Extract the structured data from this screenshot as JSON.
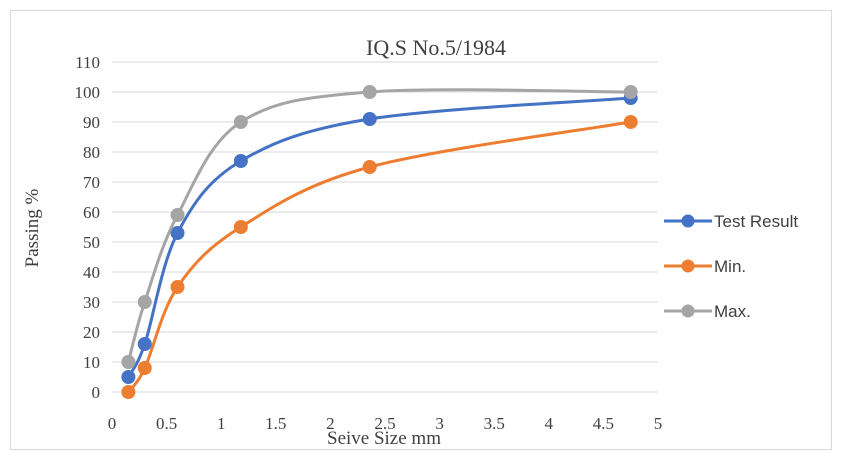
{
  "chart_data": {
    "type": "line",
    "title": "IQ.S No.5/1984",
    "xlabel": "Seive Size mm",
    "ylabel": "Passing %",
    "xlim": [
      0,
      5
    ],
    "ylim": [
      0,
      110
    ],
    "xticks": [
      "0",
      "0.5",
      "1",
      "1.5",
      "2",
      "2.5",
      "3",
      "3.5",
      "4",
      "4.5",
      "5"
    ],
    "yticks": [
      "0",
      "10",
      "20",
      "30",
      "40",
      "50",
      "60",
      "70",
      "80",
      "90",
      "100",
      "110"
    ],
    "grid": "horizontal",
    "legend_position": "right",
    "series": [
      {
        "name": "Test Result",
        "color": "#4472c4",
        "x": [
          0.15,
          0.3,
          0.6,
          1.18,
          2.36,
          4.75
        ],
        "y": [
          5,
          16,
          53,
          77,
          91,
          98
        ]
      },
      {
        "name": "Min.",
        "color": "#ed7d31",
        "x": [
          0.15,
          0.3,
          0.6,
          1.18,
          2.36,
          4.75
        ],
        "y": [
          0,
          8,
          35,
          55,
          75,
          90
        ]
      },
      {
        "name": "Max.",
        "color": "#a5a5a5",
        "x": [
          0.15,
          0.3,
          0.6,
          1.18,
          2.36,
          4.75
        ],
        "y": [
          10,
          30,
          59,
          90,
          100,
          100
        ]
      }
    ]
  }
}
